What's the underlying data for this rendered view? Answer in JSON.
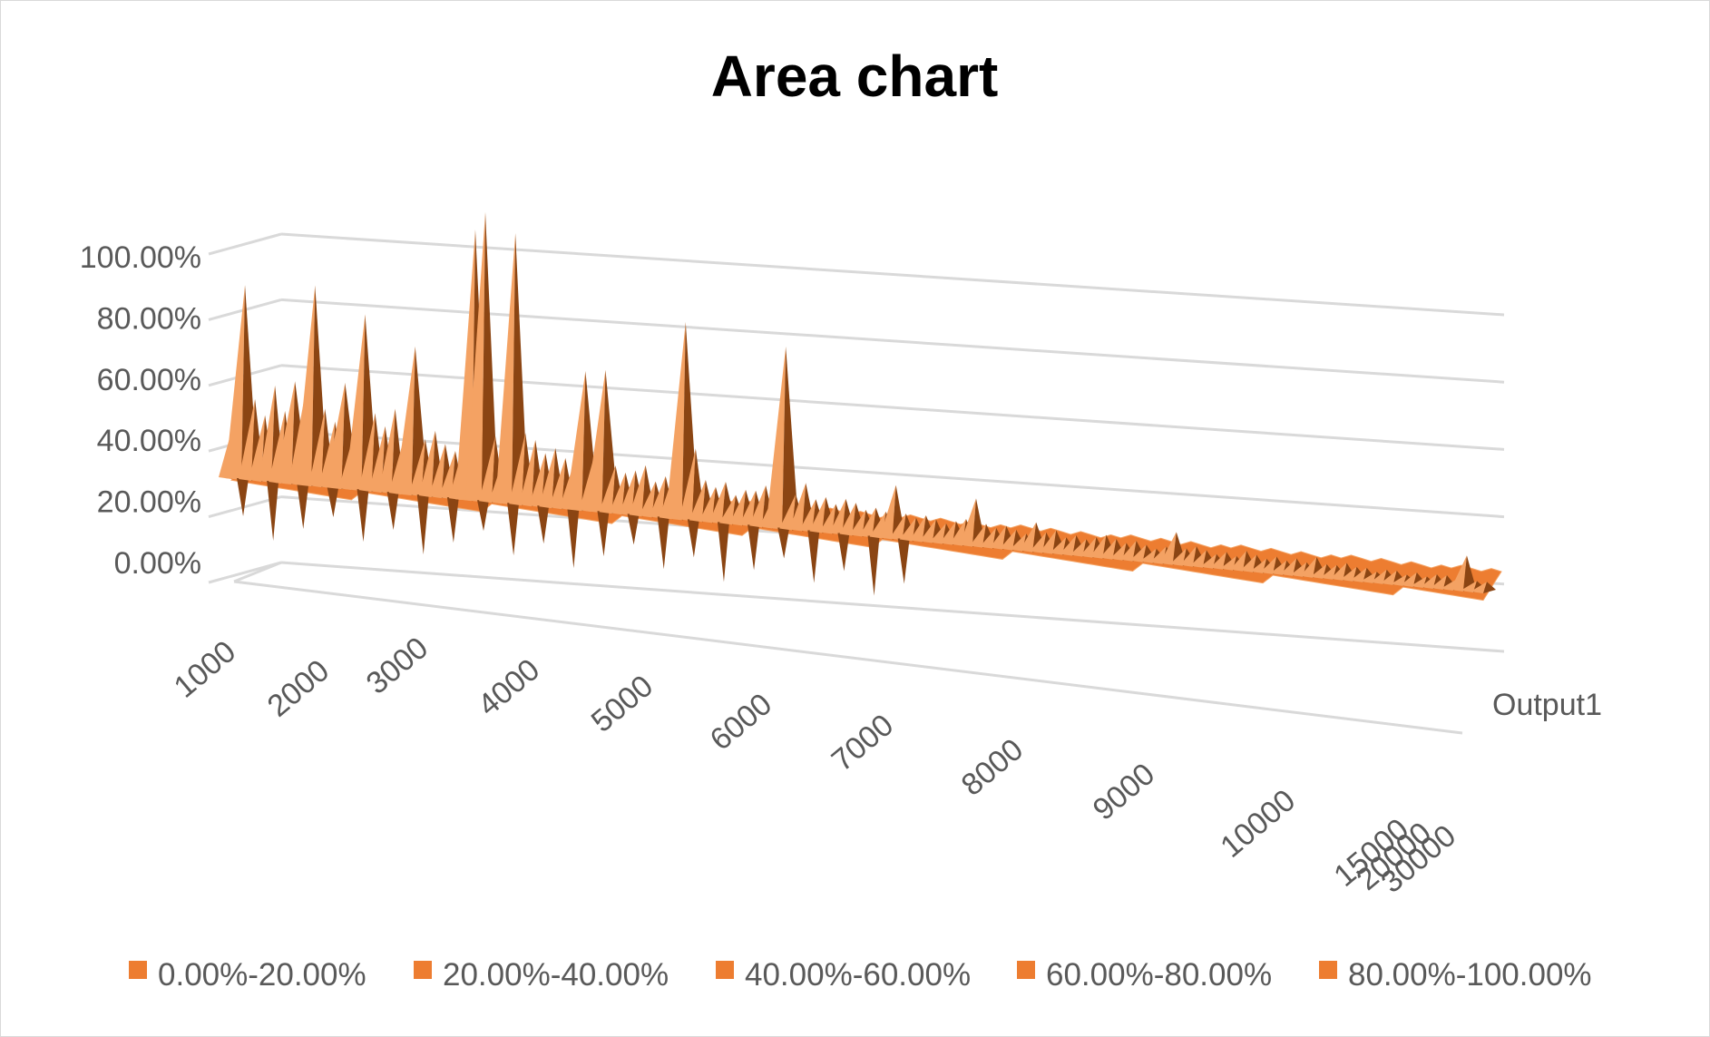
{
  "chart_data": {
    "type": "area",
    "subtype": "3d-surface",
    "title": "Area chart",
    "y_ticks": [
      "0.00%",
      "20.00%",
      "40.00%",
      "60.00%",
      "80.00%",
      "100.00%"
    ],
    "ylim": [
      0,
      1
    ],
    "x_ticks": [
      "1000",
      "2000",
      "3000",
      "4000",
      "5000",
      "6000",
      "7000",
      "8000",
      "9000",
      "10000",
      "15000",
      "20000",
      "30000"
    ],
    "depth_label": "Output1",
    "legend": [
      "0.00%-20.00%",
      "20.00%-40.00%",
      "40.00%-60.00%",
      "60.00%-80.00%",
      "80.00%-100.00%"
    ],
    "legend_position": "bottom",
    "grid": true,
    "colors": {
      "base": "#ED7D31",
      "light": "#F4A263",
      "dark": "#8B4513",
      "grid": "#D9D9D9",
      "text": "#595959"
    },
    "series": [
      {
        "name": "Output1",
        "values": [
          0.18,
          0.62,
          0.25,
          0.2,
          0.3,
          0.22,
          0.32,
          0.28,
          0.64,
          0.24,
          0.2,
          0.33,
          0.18,
          0.56,
          0.24,
          0.2,
          0.26,
          0.18,
          0.47,
          0.17,
          0.2,
          0.16,
          0.14,
          0.18,
          0.87,
          0.93,
          0.2,
          0.15,
          0.87,
          0.22,
          0.2,
          0.16,
          0.18,
          0.15,
          0.15,
          0.44,
          0.18,
          0.45,
          0.14,
          0.12,
          0.13,
          0.15,
          0.1,
          0.12,
          0.15,
          0.63,
          0.22,
          0.12,
          0.1,
          0.12,
          0.08,
          0.1,
          0.1,
          0.12,
          0.1,
          0.58,
          0.1,
          0.14,
          0.09,
          0.1,
          0.08,
          0.1,
          0.09,
          0.07,
          0.08,
          0.07,
          0.16,
          0.07,
          0.06,
          0.07,
          0.06,
          0.05,
          0.06,
          0.07,
          0.14,
          0.06,
          0.05,
          0.06,
          0.05,
          0.04,
          0.08,
          0.05,
          0.06,
          0.04,
          0.05,
          0.04,
          0.05,
          0.06,
          0.05,
          0.04,
          0.05,
          0.04,
          0.03,
          0.04,
          0.09,
          0.04,
          0.05,
          0.04,
          0.03,
          0.04,
          0.03,
          0.05,
          0.04,
          0.03,
          0.04,
          0.03,
          0.04,
          0.03,
          0.05,
          0.03,
          0.03,
          0.04,
          0.03,
          0.03,
          0.02,
          0.03,
          0.03,
          0.02,
          0.03,
          0.02,
          0.03,
          0.03,
          0.02,
          0.1,
          0.02,
          0.02
        ]
      }
    ]
  }
}
